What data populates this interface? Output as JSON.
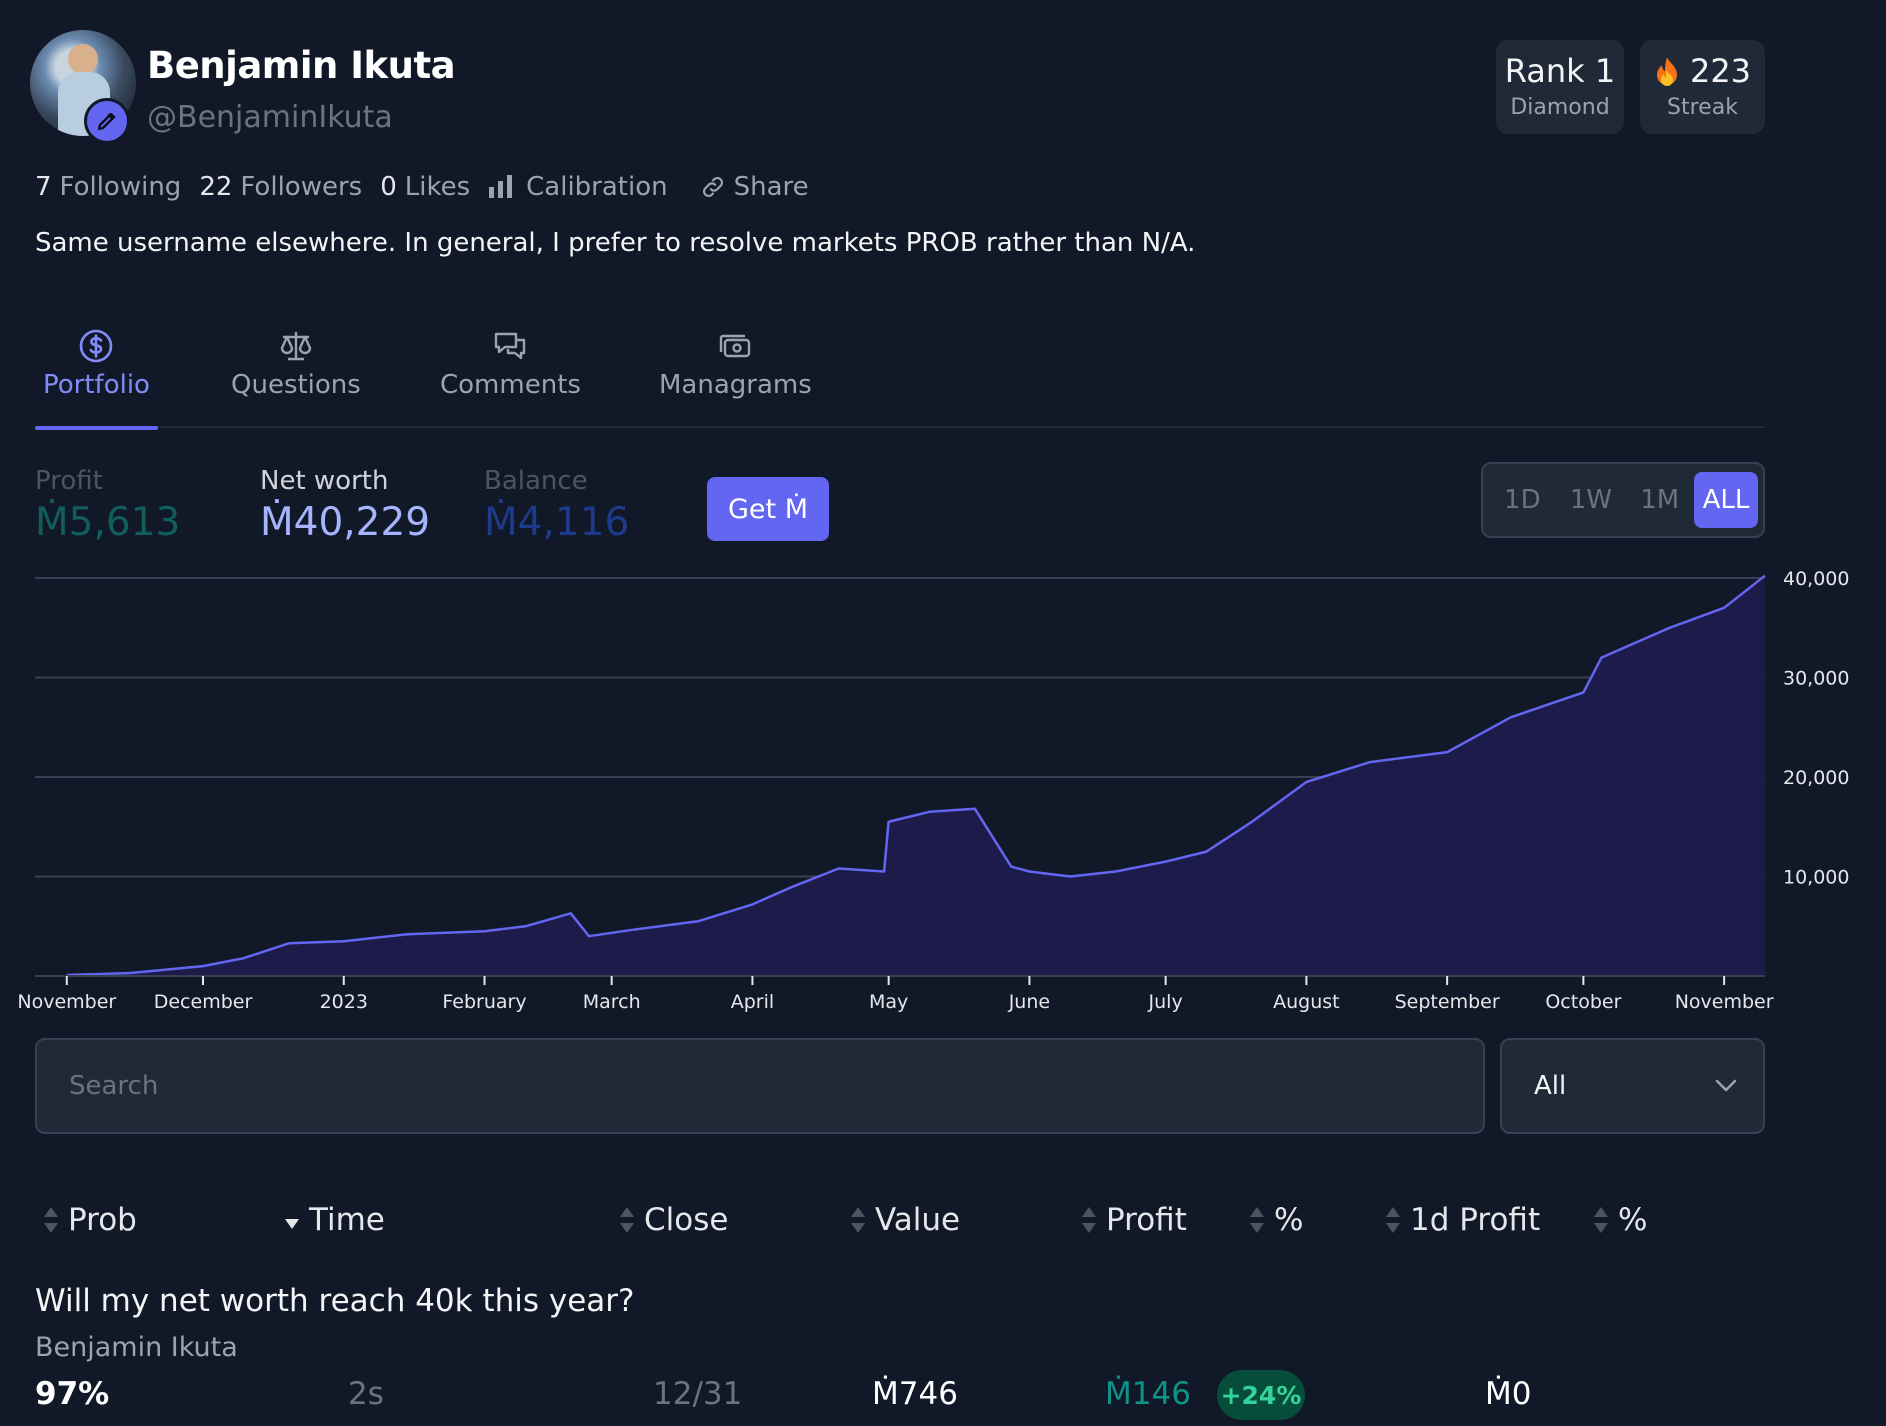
{
  "profile": {
    "name": "Benjamin Ikuta",
    "handle": "@BenjaminIkuta",
    "bio": "Same username elsewhere. In general, I prefer to resolve markets PROB rather than N/A."
  },
  "badges": {
    "rank": {
      "value": "Rank 1",
      "label": "Diamond"
    },
    "streak": {
      "value": "223",
      "label": "Streak",
      "icon": "fire-icon"
    }
  },
  "social": {
    "following_count": "7",
    "following_label": "Following",
    "followers_count": "22",
    "followers_label": "Followers",
    "likes_count": "0",
    "likes_label": "Likes",
    "calibration_label": "Calibration",
    "share_label": "Share"
  },
  "tabs": [
    {
      "label": "Portfolio",
      "icon": "dollar-icon",
      "active": true
    },
    {
      "label": "Questions",
      "icon": "scale-icon",
      "active": false
    },
    {
      "label": "Comments",
      "icon": "chat-icon",
      "active": false
    },
    {
      "label": "Managrams",
      "icon": "money-icon",
      "active": false
    }
  ],
  "portfolio": {
    "profit_label": "Profit",
    "profit_value": "Ṁ5,613",
    "networth_label": "Net worth",
    "networth_value": "Ṁ40,229",
    "balance_label": "Balance",
    "balance_value": "Ṁ4,116",
    "get_button": "Get Ṁ",
    "periods": [
      "1D",
      "1W",
      "1M",
      "ALL"
    ],
    "active_period": "ALL"
  },
  "colors": {
    "accent": "#6366f1",
    "profit": "#0f766e",
    "balance": "#1e3a8a",
    "positive": "#34d399"
  },
  "chart_data": {
    "type": "area",
    "series": [
      {
        "x": [
          "2022-11-01",
          "2022-11-15",
          "2022-12-01",
          "2022-12-10",
          "2022-12-20",
          "2023-01-01",
          "2023-01-15",
          "2023-02-01",
          "2023-02-10",
          "2023-02-20",
          "2023-02-24",
          "2023-03-05",
          "2023-03-20",
          "2023-04-01",
          "2023-04-10",
          "2023-04-20",
          "2023-04-30",
          "2023-05-01",
          "2023-05-10",
          "2023-05-20",
          "2023-05-28",
          "2023-06-01",
          "2023-06-10",
          "2023-06-20",
          "2023-07-01",
          "2023-07-10",
          "2023-07-20",
          "2023-08-01",
          "2023-08-15",
          "2023-09-01",
          "2023-09-15",
          "2023-10-01",
          "2023-10-05",
          "2023-10-20",
          "2023-11-01",
          "2023-11-10"
        ],
        "values": [
          100,
          300,
          1000,
          1800,
          3300,
          3500,
          4200,
          4500,
          5000,
          6300,
          4000,
          4600,
          5500,
          7200,
          9000,
          10800,
          10500,
          15500,
          16500,
          16800,
          11000,
          10500,
          10000,
          10500,
          11500,
          12500,
          15500,
          19500,
          21500,
          22500,
          26000,
          28500,
          32000,
          35000,
          37000,
          40229
        ]
      }
    ],
    "x_ticks": [
      "November",
      "December",
      "2023",
      "February",
      "March",
      "April",
      "May",
      "June",
      "July",
      "August",
      "September",
      "October",
      "November"
    ],
    "y_ticks": [
      "10,000",
      "20,000",
      "30,000",
      "40,000"
    ],
    "ylim": [
      0,
      40000
    ],
    "grid": true
  },
  "search": {
    "placeholder": "Search",
    "value": ""
  },
  "filter": {
    "selected": "All"
  },
  "table": {
    "headers": [
      "Prob",
      "Time",
      "Close",
      "Value",
      "Profit",
      "%",
      "1d Profit",
      "%"
    ],
    "rows": [
      {
        "title": "Will my net worth reach 40k this year?",
        "creator": "Benjamin Ikuta",
        "prob": "97%",
        "time": "2s",
        "close": "12/31",
        "value": "Ṁ746",
        "profit": "Ṁ146",
        "profit_pct": "+24%",
        "day_profit": "Ṁ0"
      }
    ]
  }
}
